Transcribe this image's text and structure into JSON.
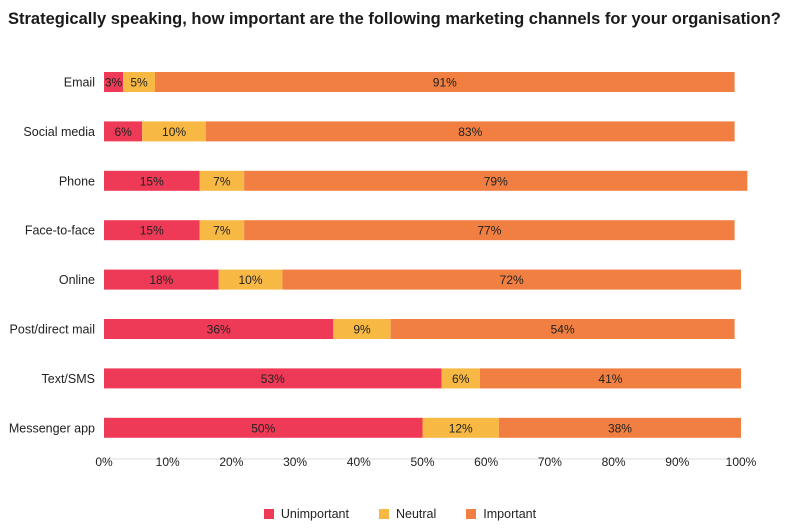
{
  "title": "Strategically speaking, how important are the following marketing channels for your organisation?",
  "chart_data": {
    "type": "bar",
    "orientation": "horizontal",
    "stacked": true,
    "categories": [
      "Email",
      "Social media",
      "Phone",
      "Face-to-face",
      "Online",
      "Post/direct mail",
      "Text/SMS",
      "Messenger app"
    ],
    "series": [
      {
        "name": "Unimportant",
        "color": "#ee3a56",
        "values": [
          3,
          6,
          15,
          15,
          18,
          36,
          53,
          50
        ]
      },
      {
        "name": "Neutral",
        "color": "#f7b944",
        "values": [
          5,
          10,
          7,
          7,
          10,
          9,
          6,
          12
        ]
      },
      {
        "name": "Important",
        "color": "#f07f41",
        "values": [
          91,
          83,
          79,
          77,
          72,
          54,
          41,
          38
        ]
      }
    ],
    "xlim": [
      0,
      100
    ],
    "x_ticks": [
      "0%",
      "10%",
      "20%",
      "30%",
      "40%",
      "50%",
      "60%",
      "70%",
      "80%",
      "90%",
      "100%"
    ],
    "legend_position": "bottom",
    "grid": false
  }
}
